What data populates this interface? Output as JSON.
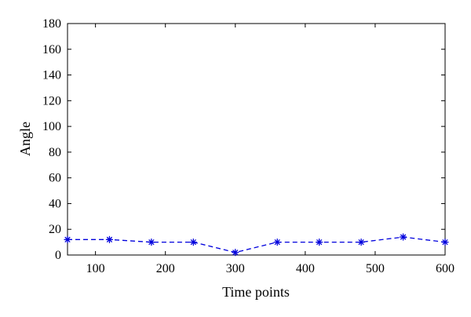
{
  "chart_data": {
    "type": "line",
    "xlabel": "Time points",
    "ylabel": "Angle",
    "xlim": [
      60,
      600
    ],
    "ylim": [
      0,
      180
    ],
    "x_ticks": [
      100,
      200,
      300,
      400,
      500,
      600
    ],
    "y_ticks": [
      0,
      20,
      40,
      60,
      80,
      100,
      120,
      140,
      160,
      180
    ],
    "grid": false,
    "line_style": "dashed",
    "marker": "asterisk",
    "color": "#0000dd",
    "series": [
      {
        "x": [
          60,
          120,
          180,
          240,
          300,
          360,
          420,
          480,
          540,
          600
        ],
        "values": [
          12,
          12,
          10,
          10,
          2,
          10,
          10,
          10,
          14,
          10
        ]
      }
    ]
  }
}
